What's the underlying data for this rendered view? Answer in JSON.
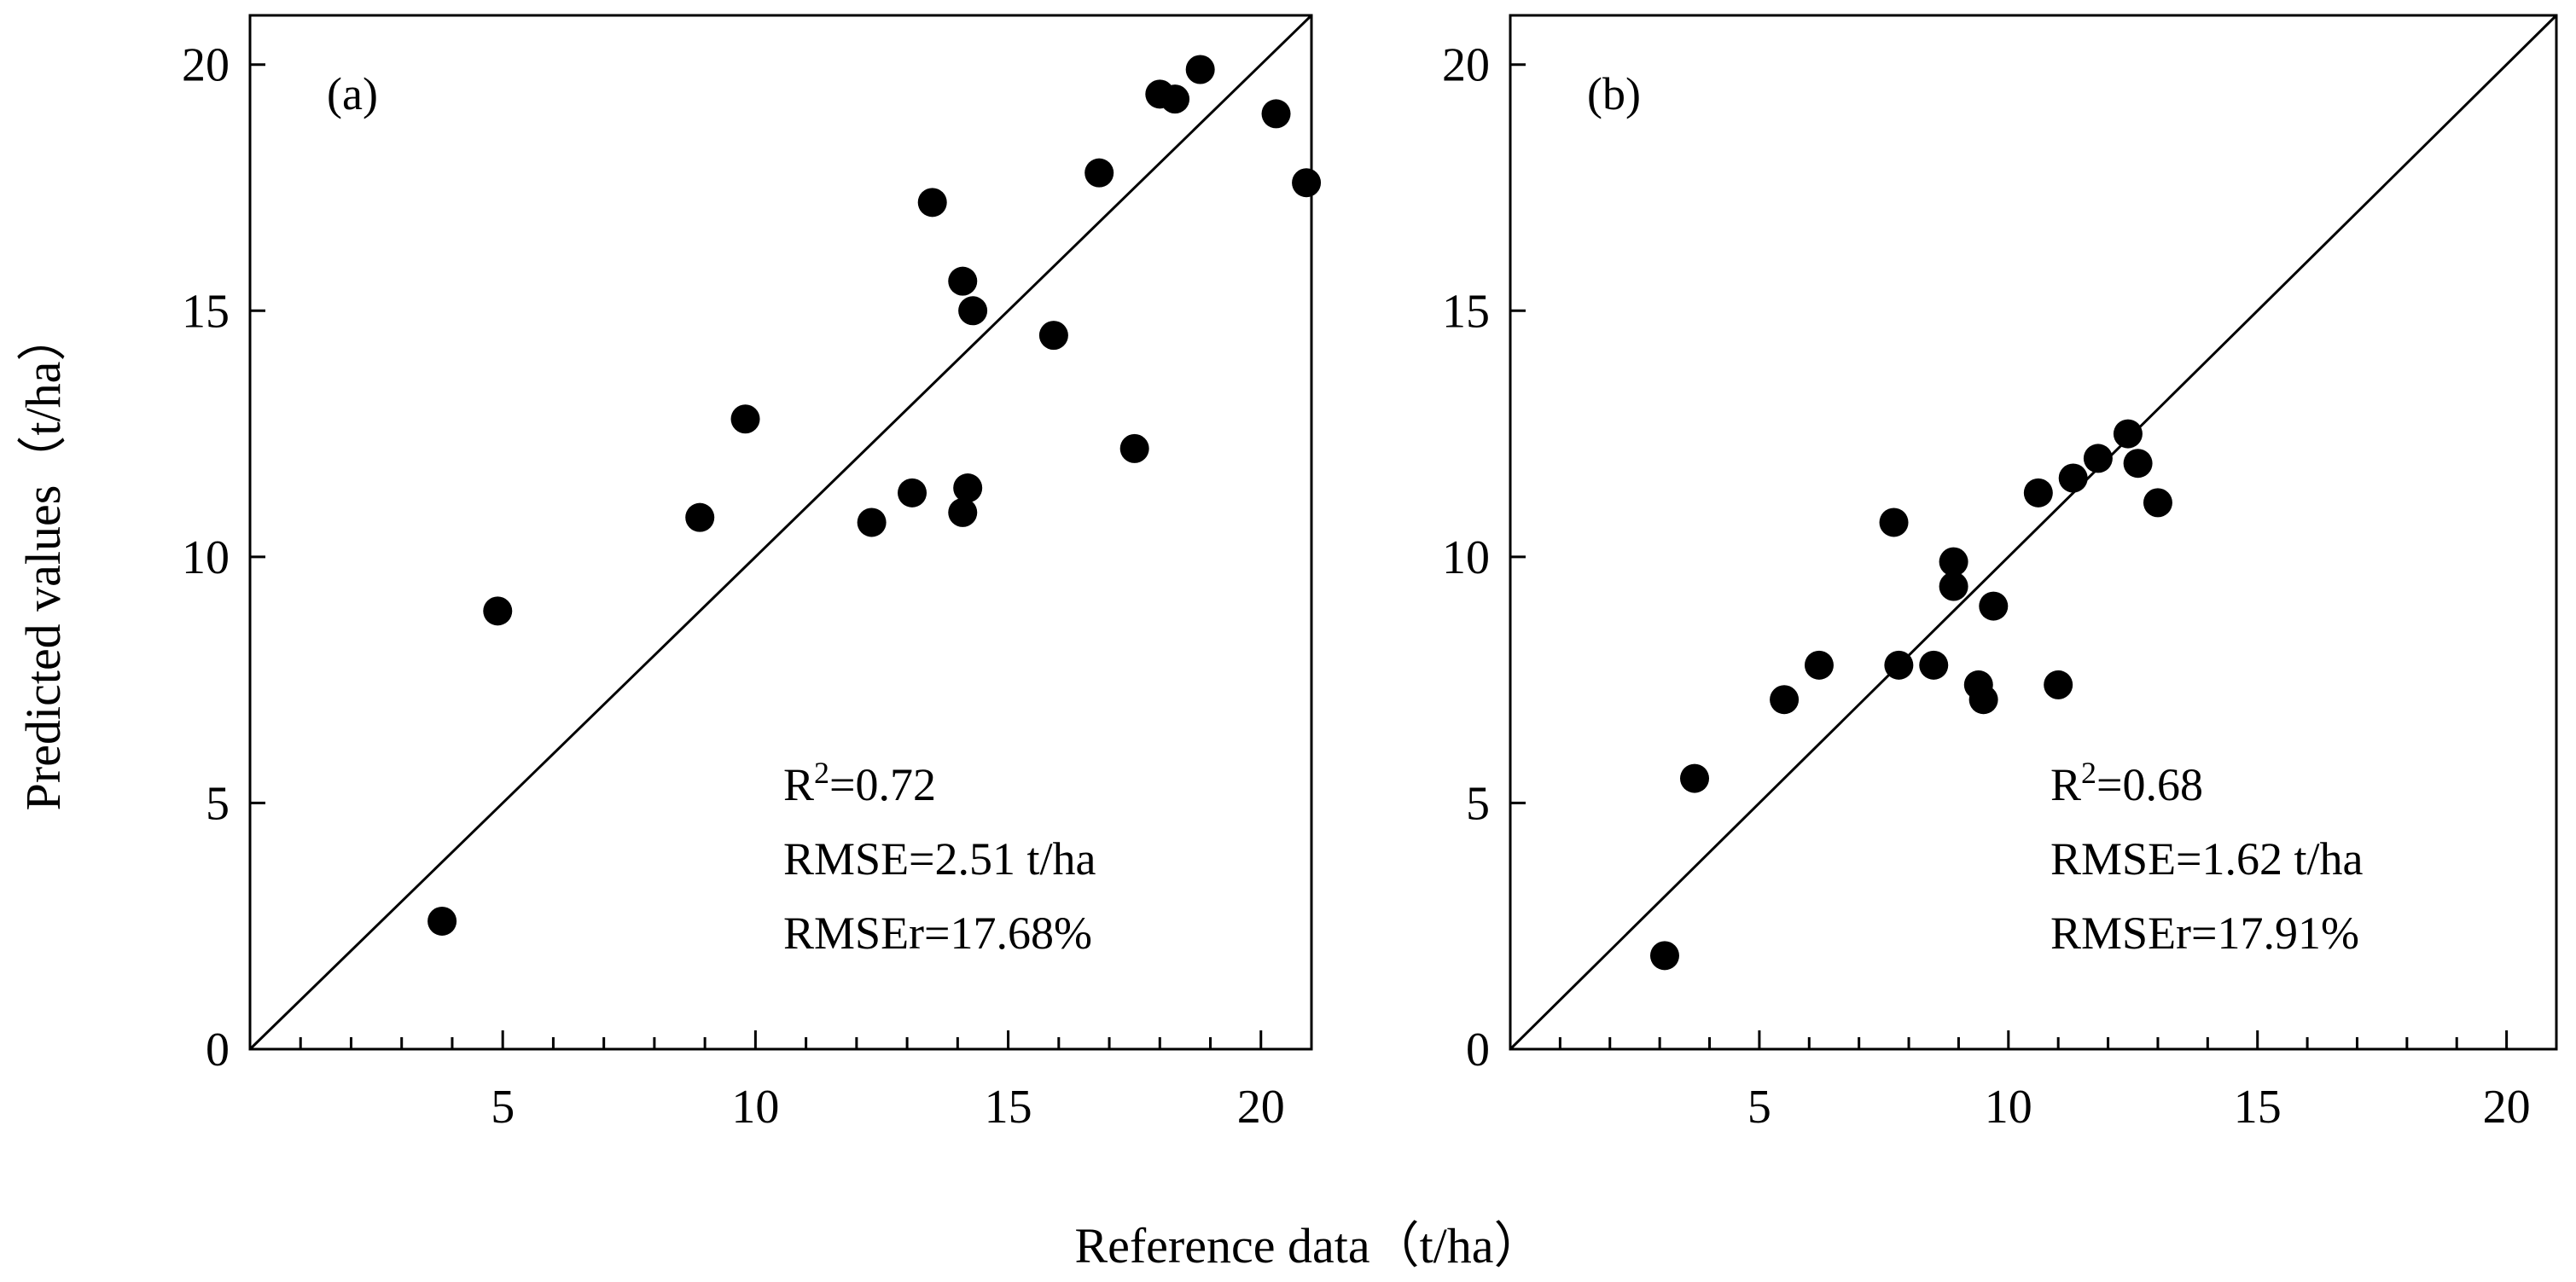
{
  "y_axis_label": "Predicted values（t/ha）",
  "x_axis_label": "Reference data（t/ha）",
  "chart_data": [
    {
      "type": "scatter",
      "panel_label": "(a)",
      "xlim": [
        0,
        21
      ],
      "ylim": [
        0,
        21
      ],
      "x_ticks": [
        5,
        10,
        15,
        20
      ],
      "x_tick_labels": [
        "5",
        "10",
        "15",
        "20"
      ],
      "y_ticks": [
        0,
        5,
        10,
        15,
        20
      ],
      "y_tick_labels": [
        "0",
        "5",
        "10",
        "15",
        "20"
      ],
      "reference_line": "1:1",
      "stats": {
        "r2_prefix": "R",
        "r2_sup": "2",
        "r2_value": "=0.72",
        "rmse": "RMSE=2.51 t/ha",
        "rmser": "RMSEr=17.68%"
      },
      "points": [
        {
          "x": 3.8,
          "y": 2.6
        },
        {
          "x": 4.9,
          "y": 8.9
        },
        {
          "x": 8.9,
          "y": 10.8
        },
        {
          "x": 9.8,
          "y": 12.8
        },
        {
          "x": 12.3,
          "y": 10.7
        },
        {
          "x": 13.1,
          "y": 11.3
        },
        {
          "x": 13.5,
          "y": 17.2
        },
        {
          "x": 14.1,
          "y": 15.6
        },
        {
          "x": 14.1,
          "y": 10.9
        },
        {
          "x": 14.2,
          "y": 11.4
        },
        {
          "x": 14.3,
          "y": 15.0
        },
        {
          "x": 15.9,
          "y": 14.5
        },
        {
          "x": 16.8,
          "y": 17.8
        },
        {
          "x": 17.5,
          "y": 12.2
        },
        {
          "x": 18.0,
          "y": 19.4
        },
        {
          "x": 18.3,
          "y": 19.3
        },
        {
          "x": 18.8,
          "y": 19.9
        },
        {
          "x": 20.3,
          "y": 19.0
        },
        {
          "x": 20.9,
          "y": 17.6
        }
      ]
    },
    {
      "type": "scatter",
      "panel_label": "(b)",
      "xlim": [
        0,
        21
      ],
      "ylim": [
        0,
        21
      ],
      "x_ticks": [
        5,
        10,
        15,
        20
      ],
      "x_tick_labels": [
        "5",
        "10",
        "15",
        "20"
      ],
      "y_ticks": [
        0,
        5,
        10,
        15,
        20
      ],
      "y_tick_labels": [
        "0",
        "5",
        "10",
        "15",
        "20"
      ],
      "reference_line": "1:1",
      "stats": {
        "r2_prefix": "R",
        "r2_sup": "2",
        "r2_value": "=0.68",
        "rmse": "RMSE=1.62 t/ha",
        "rmser": "RMSEr=17.91%"
      },
      "points": [
        {
          "x": 3.1,
          "y": 1.9
        },
        {
          "x": 3.7,
          "y": 5.5
        },
        {
          "x": 5.5,
          "y": 7.1
        },
        {
          "x": 6.2,
          "y": 7.8
        },
        {
          "x": 7.7,
          "y": 10.7
        },
        {
          "x": 7.8,
          "y": 7.8
        },
        {
          "x": 8.5,
          "y": 7.8
        },
        {
          "x": 8.9,
          "y": 9.9
        },
        {
          "x": 8.9,
          "y": 9.4
        },
        {
          "x": 9.4,
          "y": 7.4
        },
        {
          "x": 9.5,
          "y": 7.1
        },
        {
          "x": 9.7,
          "y": 9.0
        },
        {
          "x": 10.6,
          "y": 11.3
        },
        {
          "x": 11.0,
          "y": 7.4
        },
        {
          "x": 11.3,
          "y": 11.6
        },
        {
          "x": 11.8,
          "y": 12.0
        },
        {
          "x": 12.4,
          "y": 12.5
        },
        {
          "x": 12.6,
          "y": 11.9
        },
        {
          "x": 13.0,
          "y": 11.1
        }
      ]
    }
  ]
}
